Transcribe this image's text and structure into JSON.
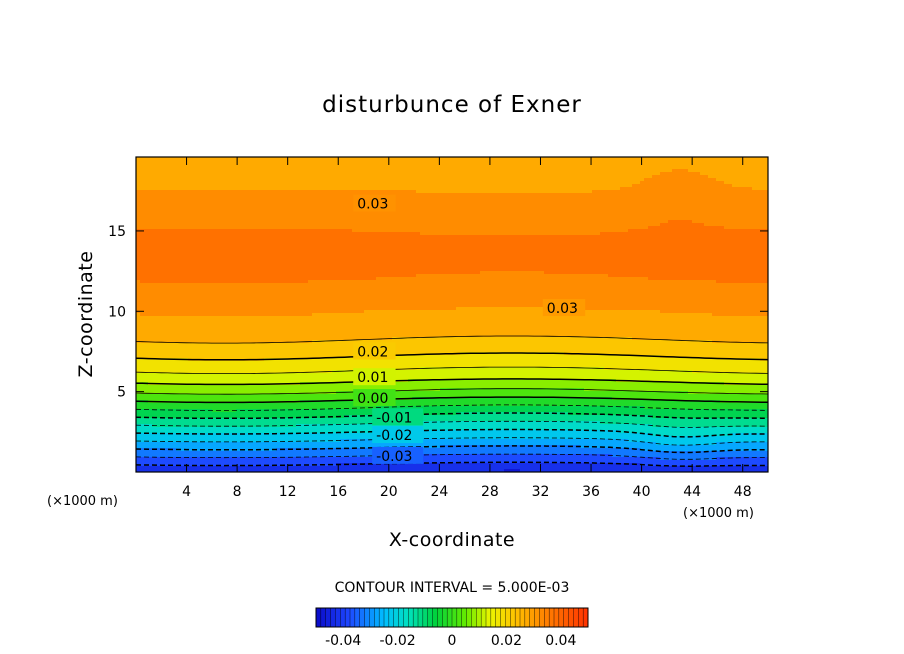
{
  "chart_data": {
    "type": "heatmap",
    "subtype": "filled-contour",
    "title": "disturbunce of Exner",
    "xlabel": "X-coordinate",
    "ylabel": "Z-coordinate",
    "x_unit": "(×1000 m)",
    "y_unit": "(×1000 m)",
    "xlim": [
      0,
      50
    ],
    "ylim": [
      0,
      19.6
    ],
    "x_ticks": [
      4,
      8,
      12,
      16,
      20,
      24,
      28,
      32,
      36,
      40,
      44,
      48
    ],
    "y_ticks": [
      5,
      10,
      15
    ],
    "contour_interval_text": "CONTOUR INTERVAL = 5.000E-03",
    "contour_interval": 0.005,
    "color_range": [
      -0.05,
      0.05
    ],
    "colorbar_ticks": [
      -0.04,
      -0.02,
      0,
      0.02,
      0.04
    ],
    "colorbar_tick_labels": [
      "-0.04",
      "-0.02",
      "0",
      "0.02",
      "0.04"
    ],
    "contour_labels": [
      {
        "text": "0.03",
        "x": 17.5,
        "z": 16.7
      },
      {
        "text": "0.03",
        "x": 32.5,
        "z": 10.2
      },
      {
        "text": "0.02",
        "x": 17.5,
        "z": 7.5
      },
      {
        "text": "0.01",
        "x": 17.5,
        "z": 5.9
      },
      {
        "text": "0.00",
        "x": 17.5,
        "z": 4.6
      },
      {
        "text": "-0.01",
        "x": 19,
        "z": 3.4
      },
      {
        "text": "-0.02",
        "x": 19,
        "z": 2.3
      },
      {
        "text": "-0.03",
        "x": 19,
        "z": 1.0
      }
    ],
    "field_profile": {
      "z": [
        0,
        1,
        2,
        3,
        4,
        5,
        6,
        7,
        8,
        9,
        10,
        11,
        12,
        13,
        14,
        15,
        16,
        17,
        18,
        19.6
      ],
      "value": [
        -0.045,
        -0.035,
        -0.025,
        -0.015,
        -0.005,
        0.005,
        0.013,
        0.019,
        0.024,
        0.028,
        0.03,
        0.033,
        0.035,
        0.036,
        0.036,
        0.035,
        0.033,
        0.031,
        0.029,
        0.027
      ]
    },
    "grid": false,
    "legend": "colorbar bottom-center"
  }
}
